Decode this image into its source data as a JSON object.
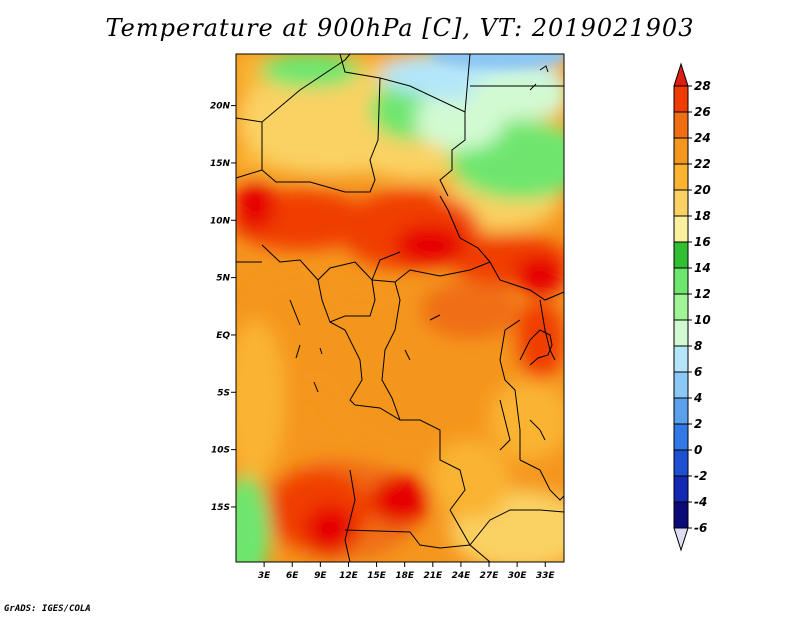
{
  "title": "Temperature at 900hPa [C], VT: 2019021903",
  "credit": "GrADS: IGES/COLA",
  "map": {
    "lat_ticks": [
      "20N",
      "15N",
      "10N",
      "5N",
      "EQ",
      "5S",
      "10S",
      "15S"
    ],
    "lon_ticks": [
      "3E",
      "6E",
      "9E",
      "12E",
      "15E",
      "18E",
      "21E",
      "24E",
      "27E",
      "30E",
      "33E"
    ],
    "lat_values": [
      20,
      15,
      10,
      5,
      0,
      -5,
      -10,
      -15
    ],
    "lon_values": [
      3,
      6,
      9,
      12,
      15,
      18,
      21,
      24,
      27,
      30,
      33
    ],
    "lon_range": [
      0,
      35
    ],
    "lat_range": [
      -19.8,
      24.5
    ]
  },
  "colorbar": {
    "labels": [
      "28",
      "26",
      "24",
      "22",
      "20",
      "18",
      "16",
      "14",
      "12",
      "10",
      "8",
      "6",
      "4",
      "2",
      "0",
      "-2",
      "-4",
      "-6"
    ],
    "colors": [
      "#e60000",
      "#f03c00",
      "#f06e14",
      "#f5961e",
      "#fab432",
      "#fad264",
      "#faf0a0",
      "#32be32",
      "#6ee66e",
      "#a0f596",
      "#d2fad2",
      "#b4e6fa",
      "#8cc8f5",
      "#5aa0eb",
      "#3278e6",
      "#1e50d2",
      "#1428b4",
      "#0a0a78",
      "#dcdcf5"
    ],
    "top_arrow_color": "#dc1e14",
    "bottom_arrow_color": "#dcdcf5"
  }
}
